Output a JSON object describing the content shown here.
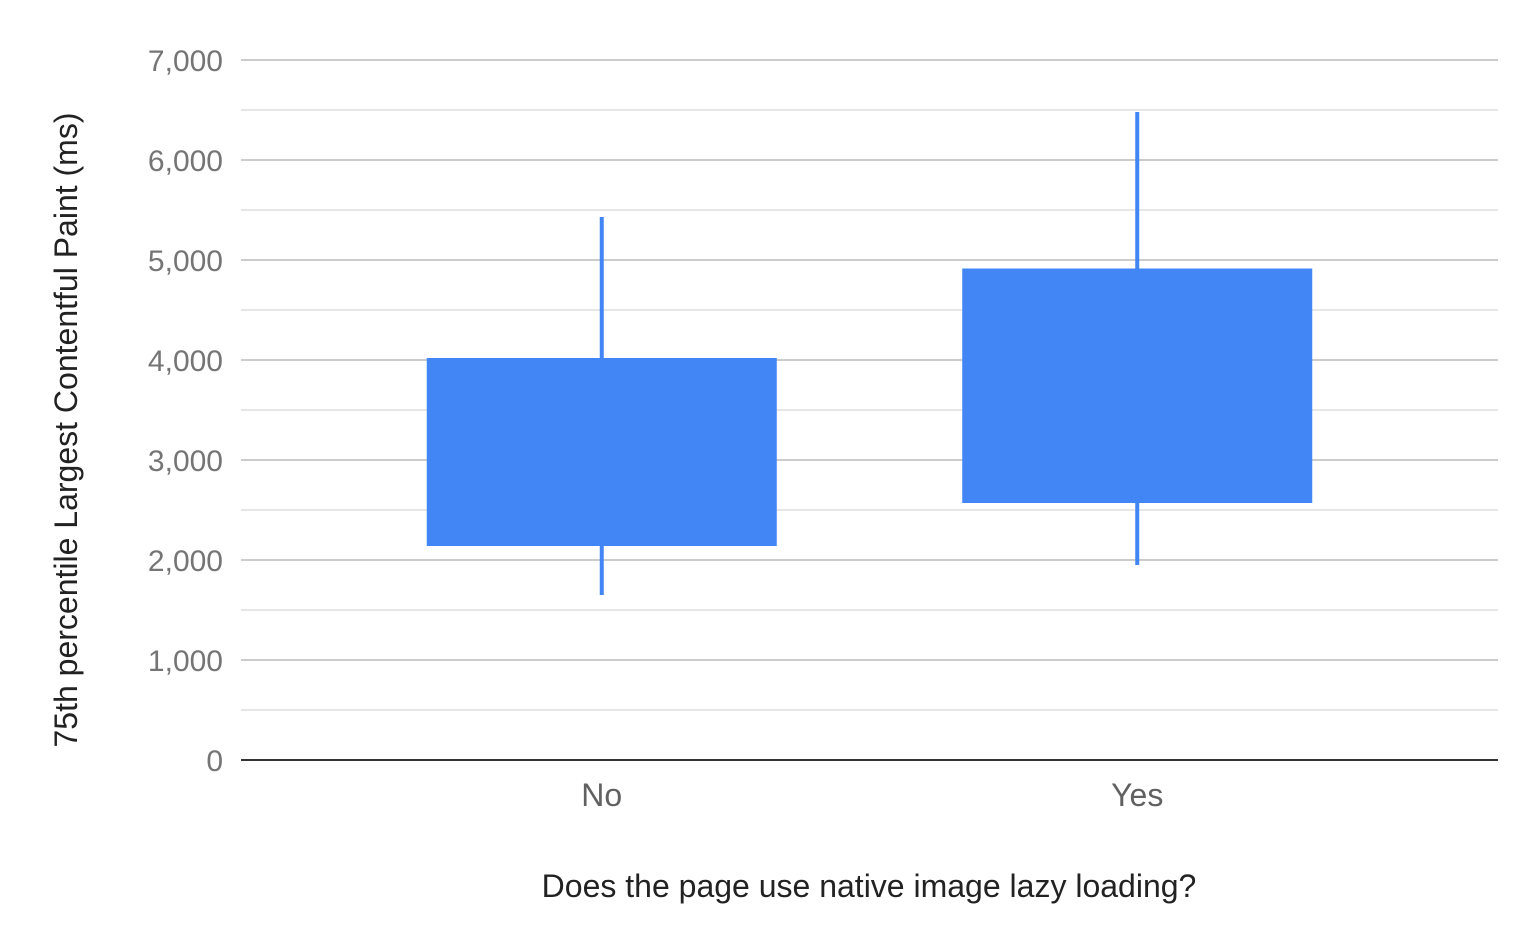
{
  "chart_data": {
    "type": "candlestick",
    "title": "",
    "xlabel": "Does the page use native image lazy loading?",
    "ylabel": "75th percentile Largest Contentful Paint (ms)",
    "ylim": [
      0,
      7000
    ],
    "yticks": [
      0,
      1000,
      2000,
      3000,
      4000,
      5000,
      6000,
      7000
    ],
    "ytick_labels": [
      "0",
      "1,000",
      "2,000",
      "3,000",
      "4,000",
      "5,000",
      "6,000",
      "7,000"
    ],
    "categories": [
      "No",
      "Yes"
    ],
    "series": [
      {
        "low": [
          1650,
          1950
        ],
        "box_bottom": [
          2140,
          2570
        ],
        "box_top": [
          4020,
          4915
        ],
        "high": [
          5430,
          6480
        ]
      }
    ],
    "grid": true,
    "minor_grid": true,
    "color": "#4285F4",
    "legend": "none"
  }
}
